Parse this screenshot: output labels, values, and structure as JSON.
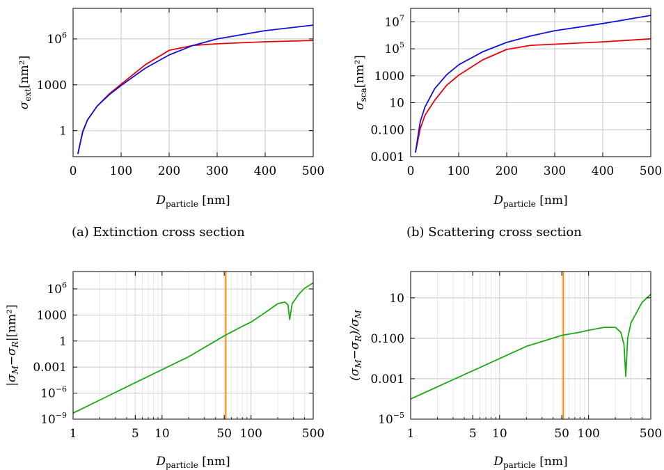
{
  "colors": {
    "red": "#e8000b",
    "blue": "#1010d8",
    "green": "#1aaa14",
    "orange": "#ff8c00",
    "grid": "#c8c8c8"
  },
  "captions": {
    "a": "(a)  Extinction cross section",
    "b": "(b)  Scattering cross section"
  },
  "chart_data": [
    {
      "id": "a",
      "type": "line",
      "xscale": "linear",
      "yscale": "log",
      "xlim": [
        0,
        500
      ],
      "ylim": [
        0.02,
        100000000
      ],
      "grid": true,
      "xlabel": {
        "main": "D",
        "sub": "particle",
        "unit": " [nm]"
      },
      "ylabel": {
        "main": "σ",
        "sub": "ext",
        "unit": "[nm²]"
      },
      "xticks": [
        {
          "v": 0,
          "t": "0"
        },
        {
          "v": 100,
          "t": "100"
        },
        {
          "v": 200,
          "t": "200"
        },
        {
          "v": 300,
          "t": "300"
        },
        {
          "v": 400,
          "t": "400"
        },
        {
          "v": 500,
          "t": "500"
        }
      ],
      "yticks": [
        {
          "v": 1,
          "t": "1"
        },
        {
          "v": 1000,
          "t": "1000"
        },
        {
          "v": 1000000,
          "t": "10",
          "sup": "6"
        }
      ],
      "series": [
        {
          "color": "red",
          "points": [
            [
              10,
              0.03
            ],
            [
              20,
              0.9
            ],
            [
              30,
              5
            ],
            [
              50,
              40
            ],
            [
              75,
              250
            ],
            [
              100,
              1100
            ],
            [
              150,
              20000
            ],
            [
              200,
              180000
            ],
            [
              250,
              380000
            ],
            [
              300,
              480000
            ],
            [
              400,
              650000
            ],
            [
              500,
              800000
            ]
          ]
        },
        {
          "color": "blue",
          "points": [
            [
              10,
              0.03
            ],
            [
              20,
              0.8
            ],
            [
              30,
              5
            ],
            [
              50,
              40
            ],
            [
              75,
              220
            ],
            [
              100,
              900
            ],
            [
              150,
              12000
            ],
            [
              200,
              90000
            ],
            [
              250,
              380000
            ],
            [
              300,
              1000000
            ],
            [
              400,
              3500000
            ],
            [
              500,
              8000000
            ]
          ]
        }
      ],
      "vlines": []
    },
    {
      "id": "b",
      "type": "line",
      "xscale": "linear",
      "yscale": "log",
      "xlim": [
        0,
        500
      ],
      "ylim": [
        0.001,
        100000000
      ],
      "grid": true,
      "xlabel": {
        "main": "D",
        "sub": "particle",
        "unit": " [nm]"
      },
      "ylabel": {
        "main": "σ",
        "sub": "sca",
        "unit": "[nm²]"
      },
      "xticks": [
        {
          "v": 0,
          "t": "0"
        },
        {
          "v": 100,
          "t": "100"
        },
        {
          "v": 200,
          "t": "200"
        },
        {
          "v": 300,
          "t": "300"
        },
        {
          "v": 400,
          "t": "400"
        },
        {
          "v": 500,
          "t": "500"
        }
      ],
      "yticks": [
        {
          "v": 0.001,
          "t": "0.001"
        },
        {
          "v": 0.1,
          "t": "0.100"
        },
        {
          "v": 10,
          "t": "10"
        },
        {
          "v": 1000,
          "t": "1000"
        },
        {
          "v": 100000,
          "t": "10",
          "sup": "5"
        },
        {
          "v": 10000000,
          "t": "10",
          "sup": "7"
        }
      ],
      "series": [
        {
          "color": "red",
          "points": [
            [
              10,
              0.002
            ],
            [
              20,
              0.12
            ],
            [
              30,
              1.2
            ],
            [
              50,
              15
            ],
            [
              75,
              200
            ],
            [
              100,
              1100
            ],
            [
              150,
              15000
            ],
            [
              200,
              90000
            ],
            [
              250,
              180000
            ],
            [
              300,
              220000
            ],
            [
              400,
              330000
            ],
            [
              500,
              550000
            ]
          ]
        },
        {
          "color": "blue",
          "points": [
            [
              10,
              0.002
            ],
            [
              20,
              0.4
            ],
            [
              30,
              5
            ],
            [
              50,
              110
            ],
            [
              75,
              1200
            ],
            [
              100,
              6500
            ],
            [
              150,
              60000
            ],
            [
              200,
              300000
            ],
            [
              250,
              900000
            ],
            [
              300,
              2200000
            ],
            [
              400,
              7500000
            ],
            [
              500,
              30000000
            ]
          ]
        }
      ],
      "vlines": []
    },
    {
      "id": "c",
      "type": "line",
      "xscale": "log",
      "yscale": "log",
      "xlim": [
        1,
        500
      ],
      "ylim": [
        1e-09,
        100000000.0
      ],
      "grid": true,
      "xlabel": {
        "main": "D",
        "sub": "particle",
        "unit": " [nm]"
      },
      "ylabel": {
        "text": "|σ",
        "sub": "M",
        "text2": "−σ",
        "sub2": "R",
        "unit": "|[nm²]"
      },
      "xticks": [
        {
          "v": 1,
          "t": "1"
        },
        {
          "v": 5,
          "t": "5"
        },
        {
          "v": 10,
          "t": "10"
        },
        {
          "v": 50,
          "t": "50"
        },
        {
          "v": 100,
          "t": "100"
        },
        {
          "v": 500,
          "t": "500"
        }
      ],
      "yticks": [
        {
          "v": 1e-09,
          "t": "10",
          "sup": "−9"
        },
        {
          "v": 1e-06,
          "t": "10",
          "sup": "−6"
        },
        {
          "v": 0.001,
          "t": "0.001"
        },
        {
          "v": 1,
          "t": "1"
        },
        {
          "v": 1000,
          "t": "1000"
        },
        {
          "v": 1000000,
          "t": "10",
          "sup": "6"
        }
      ],
      "series": [
        {
          "color": "green",
          "points": [
            [
              1,
              5e-09
            ],
            [
              2,
              1.6e-07
            ],
            [
              5,
              1.6e-05
            ],
            [
              10,
              0.0005
            ],
            [
              20,
              0.016
            ],
            [
              50,
              4
            ],
            [
              80,
              50
            ],
            [
              100,
              150
            ],
            [
              150,
              2500
            ],
            [
              200,
              20000
            ],
            [
              240,
              30000
            ],
            [
              260,
              15000
            ],
            [
              272,
              300
            ],
            [
              290,
              20000
            ],
            [
              350,
              300000
            ],
            [
              400,
              1200000
            ],
            [
              500,
              5000000
            ]
          ]
        }
      ],
      "vlines": [
        {
          "x": 52,
          "color": "orange"
        }
      ]
    },
    {
      "id": "d",
      "type": "line",
      "xscale": "log",
      "yscale": "log",
      "xlim": [
        1,
        500
      ],
      "ylim": [
        1e-05,
        200
      ],
      "grid": true,
      "xlabel": {
        "main": "D",
        "sub": "particle",
        "unit": " [nm]"
      },
      "ylabel": {
        "text": "(σ",
        "sub": "M",
        "text2": "−σ",
        "sub2": "R",
        "text3": ")/σ",
        "sub3": "M"
      },
      "xticks": [
        {
          "v": 1,
          "t": "1"
        },
        {
          "v": 5,
          "t": "5"
        },
        {
          "v": 10,
          "t": "10"
        },
        {
          "v": 50,
          "t": "50"
        },
        {
          "v": 100,
          "t": "100"
        },
        {
          "v": 500,
          "t": "500"
        }
      ],
      "yticks": [
        {
          "v": 1e-05,
          "t": "10",
          "sup": "−5"
        },
        {
          "v": 0.001,
          "t": "0.001"
        },
        {
          "v": 0.1,
          "t": "0.100"
        },
        {
          "v": 10,
          "t": "10"
        }
      ],
      "series": [
        {
          "color": "green",
          "points": [
            [
              1,
              0.0001
            ],
            [
              2,
              0.0004
            ],
            [
              5,
              0.0025
            ],
            [
              10,
              0.01
            ],
            [
              20,
              0.04
            ],
            [
              50,
              0.14
            ],
            [
              80,
              0.2
            ],
            [
              100,
              0.25
            ],
            [
              150,
              0.35
            ],
            [
              200,
              0.35
            ],
            [
              230,
              0.2
            ],
            [
              250,
              0.05
            ],
            [
              262,
              0.0013
            ],
            [
              275,
              0.1
            ],
            [
              300,
              0.6
            ],
            [
              400,
              6
            ],
            [
              500,
              15
            ]
          ]
        }
      ],
      "vlines": [
        {
          "x": 52,
          "color": "orange"
        }
      ]
    }
  ]
}
